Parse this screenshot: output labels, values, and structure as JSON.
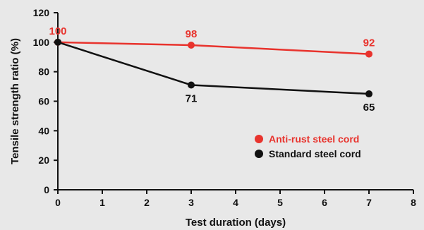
{
  "chart_data": {
    "type": "line",
    "xlabel": "Test duration (days)",
    "ylabel": "Tensile strength ratio (%)",
    "xlim": [
      0,
      8
    ],
    "ylim": [
      0,
      120
    ],
    "xticks": [
      "0",
      "1",
      "2",
      "3",
      "4",
      "5",
      "6",
      "7",
      "8"
    ],
    "yticks": [
      "0",
      "20",
      "40",
      "60",
      "80",
      "100",
      "120"
    ],
    "grid": false,
    "legend_position": "lower-right",
    "series": [
      {
        "name": "Anti-rust steel cord",
        "color": "#e8332d",
        "x": [
          0,
          3,
          7
        ],
        "values": [
          100,
          98,
          92
        ],
        "labels": [
          "100",
          "98",
          "92"
        ],
        "label_position": "above"
      },
      {
        "name": "Standard steel cord",
        "color": "#111111",
        "x": [
          0,
          3,
          7
        ],
        "values": [
          100,
          71,
          65
        ],
        "labels": [
          "",
          "71",
          "65"
        ],
        "label_position": "below"
      }
    ]
  }
}
